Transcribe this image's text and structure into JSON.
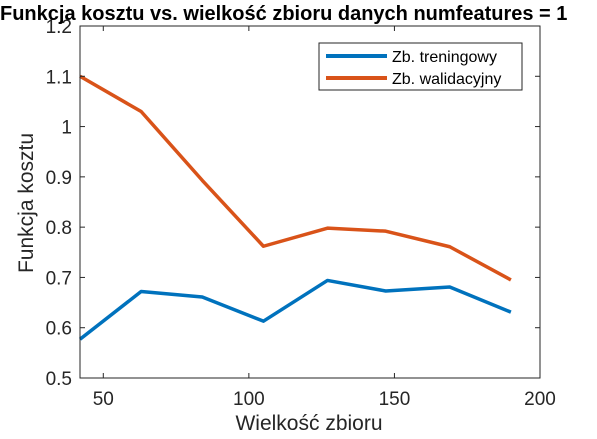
{
  "chart_data": {
    "type": "line",
    "title": "Funkcja kosztu vs. wielkość zbioru danych numfeatures = 1",
    "xlabel": "Wielkość zbioru",
    "ylabel": "Funkcja kosztu",
    "xlim": [
      42,
      200
    ],
    "ylim": [
      0.5,
      1.2
    ],
    "xticks": [
      50,
      100,
      150,
      200
    ],
    "yticks": [
      0.5,
      0.6,
      0.7,
      0.8,
      0.9,
      1,
      1.1,
      1.2
    ],
    "xtick_labels": [
      "50",
      "100",
      "150",
      "200"
    ],
    "ytick_labels": [
      "0.5",
      "0.6",
      "0.7",
      "0.8",
      "0.9",
      "1",
      "1.1",
      "1.2"
    ],
    "grid": false,
    "legend_position": "top-right",
    "x": [
      42,
      63,
      84,
      105,
      127,
      147,
      169,
      190
    ],
    "series": [
      {
        "name": "Zb. treningowy",
        "color": "#0072BD",
        "values": [
          0.577,
          0.672,
          0.661,
          0.613,
          0.694,
          0.673,
          0.681,
          0.631
        ]
      },
      {
        "name": "Zb. walidacyjny",
        "color": "#D95319",
        "values": [
          1.1,
          1.03,
          0.893,
          0.762,
          0.798,
          0.792,
          0.761,
          0.695
        ]
      }
    ]
  }
}
